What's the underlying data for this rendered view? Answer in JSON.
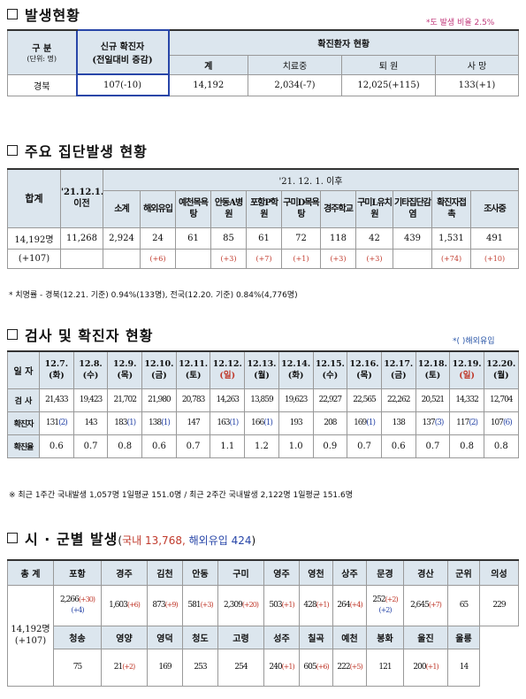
{
  "s1": {
    "title": "발생현황",
    "note": "*도 발생 비율 2.5%",
    "h_gubun": "구  분",
    "h_unit": "(단위: 명)",
    "h_new1": "신규 확진자",
    "h_new2": "(전일대비 증감)",
    "h_cases": "확진환자 현황",
    "h_total": "계",
    "h_treat": "치료중",
    "h_disch": "퇴  원",
    "h_death": "사  망",
    "region": "경북",
    "new": "107(-10)",
    "total": "14,192",
    "treat": "2,034(-7)",
    "disch": "12,025(+115)",
    "death": "133(+1)"
  },
  "s2": {
    "title": "주요 집단발생 현황",
    "h_total": "합계",
    "h_before": "'21.12.1. 이전",
    "h_after": "'21. 12. 1. 이후",
    "cols": [
      {
        "label": "소계",
        "v": "2,924",
        "d": ""
      },
      {
        "label": "해외유입",
        "v": "24",
        "d": "(+6)"
      },
      {
        "label": "예천목욕탕",
        "v": "61",
        "d": ""
      },
      {
        "label": "안동A병원",
        "v": "85",
        "d": "(+3)"
      },
      {
        "label": "포항P학원",
        "v": "61",
        "d": "(+7)"
      },
      {
        "label": "구미D목욕탕",
        "v": "72",
        "d": "(+1)"
      },
      {
        "label": "경주학교",
        "v": "118",
        "d": "(+3)"
      },
      {
        "label": "구미L유치원",
        "v": "42",
        "d": "(+3)"
      },
      {
        "label": "기타집단감염",
        "v": "439",
        "d": ""
      },
      {
        "label": "확진자접  촉",
        "v": "1,531",
        "d": "(+74)"
      },
      {
        "label": "조사중",
        "v": "491",
        "d": "(+10)"
      }
    ],
    "total": "14,192명",
    "total_delta": "(+107)",
    "before": "11,268",
    "footnote": "*  치명률 - 경북(12.21. 기준) 0.94%(133명),  전국(12.20. 기준) 0.84%(4,776명)"
  },
  "s3": {
    "title": "검사 및 확진자 현황",
    "note": "*( )해외유입",
    "h_date": "일 자",
    "h_test": "검 사",
    "h_conf": "확진자",
    "h_rate": "확진율",
    "days": [
      {
        "d": "12.7.",
        "w": "(화)",
        "test": "21,433",
        "conf": "131",
        "f": "(2)",
        "rate": "0.6"
      },
      {
        "d": "12.8.",
        "w": "(수)",
        "test": "19,423",
        "conf": "143",
        "f": "",
        "rate": "0.7"
      },
      {
        "d": "12.9.",
        "w": "(목)",
        "test": "21,702",
        "conf": "183",
        "f": "(1)",
        "rate": "0.8"
      },
      {
        "d": "12.10.",
        "w": "(금)",
        "test": "21,980",
        "conf": "138",
        "f": "(1)",
        "rate": "0.6"
      },
      {
        "d": "12.11.",
        "w": "(토)",
        "test": "20,783",
        "conf": "147",
        "f": "",
        "rate": "0.7"
      },
      {
        "d": "12.12.",
        "w": "(일)",
        "test": "14,263",
        "conf": "163",
        "f": "(1)",
        "rate": "1.1"
      },
      {
        "d": "12.13.",
        "w": "(월)",
        "test": "13,859",
        "conf": "166",
        "f": "(1)",
        "rate": "1.2"
      },
      {
        "d": "12.14.",
        "w": "(화)",
        "test": "19,623",
        "conf": "193",
        "f": "",
        "rate": "1.0"
      },
      {
        "d": "12.15.",
        "w": "(수)",
        "test": "22,927",
        "conf": "208",
        "f": "",
        "rate": "0.9"
      },
      {
        "d": "12.16.",
        "w": "(목)",
        "test": "22,565",
        "conf": "169",
        "f": "(1)",
        "rate": "0.7"
      },
      {
        "d": "12.17.",
        "w": "(금)",
        "test": "22,262",
        "conf": "138",
        "f": "",
        "rate": "0.6"
      },
      {
        "d": "12.18.",
        "w": "(토)",
        "test": "20,521",
        "conf": "137",
        "f": "(3)",
        "rate": "0.7"
      },
      {
        "d": "12.19.",
        "w": "(일)",
        "test": "14,332",
        "conf": "117",
        "f": "(2)",
        "rate": "0.8"
      },
      {
        "d": "12.20.",
        "w": "(월)",
        "test": "12,704",
        "conf": "107",
        "f": "(6)",
        "rate": "0.8"
      }
    ],
    "footnote": "※ 최근 1주간 국내발생 1,057명 1일평균 151.0명 / 최근 2주간 국내발생 2,122명 1일평균 151.6명"
  },
  "s4": {
    "title": "시 · 군별 발생",
    "sub_open": "(",
    "sub_dom": "국내 13,768,",
    "sub_ovs": "해외유입 424",
    "sub_close": ")",
    "h_total": "총 계",
    "total": "14,192명",
    "total_delta": "(+107)",
    "row1": [
      {
        "n": "포항",
        "v": "2,266",
        "d": "(+30)",
        "f": "(+4)"
      },
      {
        "n": "경주",
        "v": "1,603",
        "d": "(+6)",
        "f": ""
      },
      {
        "n": "김천",
        "v": "873",
        "d": "(+9)",
        "f": ""
      },
      {
        "n": "안동",
        "v": "581",
        "d": "(+3)",
        "f": ""
      },
      {
        "n": "구미",
        "v": "2,309",
        "d": "(+20)",
        "f": ""
      },
      {
        "n": "영주",
        "v": "503",
        "d": "(+1)",
        "f": ""
      },
      {
        "n": "영천",
        "v": "428",
        "d": "(+1)",
        "f": ""
      },
      {
        "n": "상주",
        "v": "264",
        "d": "(+4)",
        "f": ""
      },
      {
        "n": "문경",
        "v": "252",
        "d": "(+2)",
        "f": "(+2)"
      },
      {
        "n": "경산",
        "v": "2,645",
        "d": "(+7)",
        "f": ""
      },
      {
        "n": "군위",
        "v": "65",
        "d": "",
        "f": ""
      },
      {
        "n": "의성",
        "v": "229",
        "d": "",
        "f": ""
      }
    ],
    "row2": [
      {
        "n": "청송",
        "v": "75",
        "d": ""
      },
      {
        "n": "영양",
        "v": "21",
        "d": "(+2)"
      },
      {
        "n": "영덕",
        "v": "169",
        "d": ""
      },
      {
        "n": "청도",
        "v": "253",
        "d": ""
      },
      {
        "n": "고령",
        "v": "254",
        "d": ""
      },
      {
        "n": "성주",
        "v": "240",
        "d": "(+1)"
      },
      {
        "n": "칠곡",
        "v": "605",
        "d": "(+6)"
      },
      {
        "n": "예천",
        "v": "222",
        "d": "(+5)"
      },
      {
        "n": "봉화",
        "v": "121",
        "d": ""
      },
      {
        "n": "울진",
        "v": "200",
        "d": "(+1)"
      },
      {
        "n": "울릉",
        "v": "14",
        "d": ""
      }
    ]
  }
}
